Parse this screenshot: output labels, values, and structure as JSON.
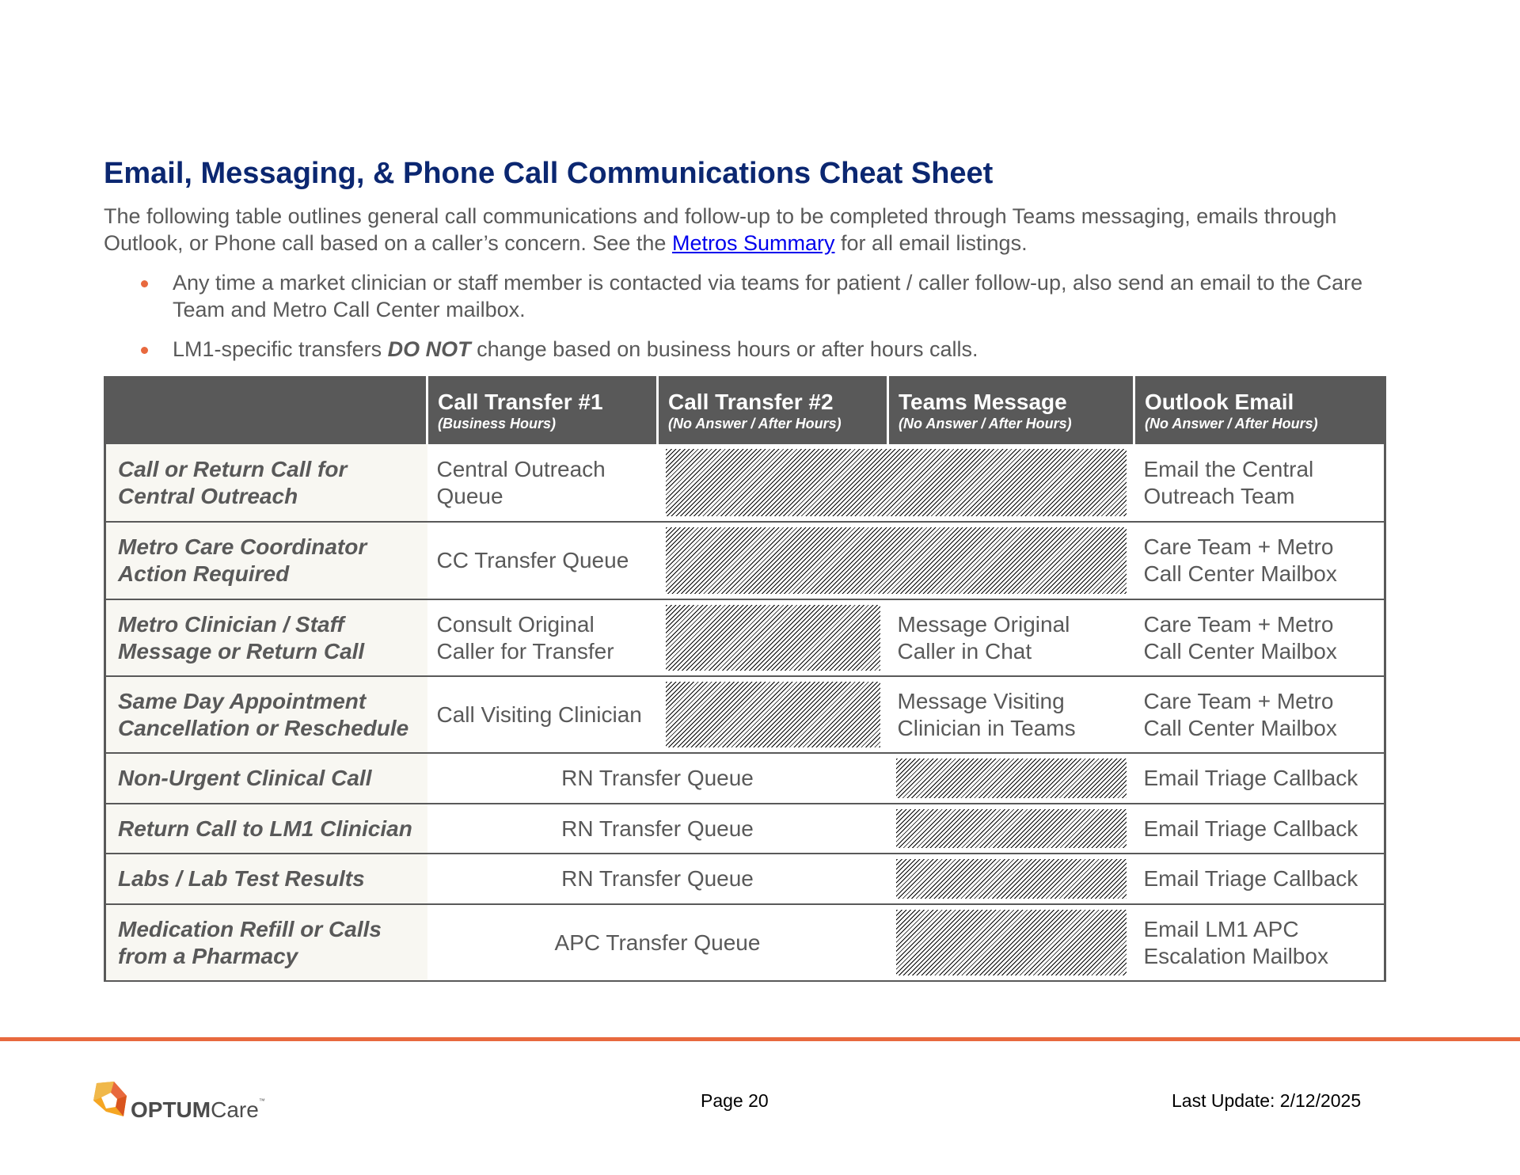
{
  "document": {
    "title": "Email, Messaging, & Phone Call Communications Cheat Sheet",
    "intro_before_link": "The following table outlines general call communications and follow-up to be completed through Teams messaging, emails through Outlook, or Phone call based on a caller’s concern. See the ",
    "intro_link": "Metros Summary",
    "intro_after_link": " for all email listings.",
    "bullets": [
      {
        "text": "Any time a market clinician or staff member is contacted via teams for patient / caller follow-up, also send an email to the Care Team and Metro Call Center mailbox."
      },
      {
        "before": "LM1-specific transfers ",
        "bold": "DO NOT",
        "after": " change based on business hours or after hours calls."
      }
    ]
  },
  "table": {
    "headers": [
      {
        "main": "",
        "sub": ""
      },
      {
        "main": "Call Transfer #1",
        "sub": "(Business Hours)"
      },
      {
        "main": "Call Transfer #2",
        "sub": "(No Answer / After Hours)"
      },
      {
        "main": "Teams Message",
        "sub": "(No Answer / After Hours)"
      },
      {
        "main": "Outlook Email",
        "sub": "(No Answer / After Hours)"
      }
    ],
    "rows": [
      {
        "label": "Call or Return Call for Central Outreach",
        "transfer1": "Central Outreach Queue",
        "outlook": "Email the Central Outreach Team"
      },
      {
        "label": "Metro Care Coordinator Action Required",
        "transfer1": "CC Transfer Queue",
        "outlook": "Care Team + Metro Call Center Mailbox"
      },
      {
        "label": "Metro Clinician / Staff Message or Return Call",
        "transfer1": "Consult Original Caller for Transfer",
        "teams": "Message Original Caller in Chat",
        "outlook": "Care Team + Metro Call Center Mailbox"
      },
      {
        "label": "Same Day Appointment Cancellation or Reschedule",
        "transfer1": "Call Visiting Clinician",
        "teams": "Message Visiting Clinician in Teams",
        "outlook": "Care Team + Metro Call Center Mailbox"
      },
      {
        "label": "Non-Urgent Clinical Call",
        "transfer": "RN Transfer Queue",
        "outlook": "Email Triage Callback"
      },
      {
        "label": "Return Call to LM1 Clinician",
        "transfer": "RN Transfer Queue",
        "outlook": "Email Triage Callback"
      },
      {
        "label": "Labs / Lab Test Results",
        "transfer": "RN Transfer Queue",
        "outlook": "Email Triage Callback"
      },
      {
        "label": "Medication Refill or Calls from a Pharmacy",
        "transfer": "APC Transfer Queue",
        "outlook": "Email LM1 APC Escalation Mailbox"
      }
    ]
  },
  "footer": {
    "logo_bold": "OPTUM",
    "logo_light": "Care",
    "logo_tm": "™",
    "page": "Page 20",
    "last_update": "Last Update: 2/12/2025"
  },
  "colors": {
    "title": "#0b2771",
    "header_bg": "#595959",
    "row_header_bg": "#f8f7f2",
    "accent_orange": "#e8693e",
    "link": "#0000ee"
  }
}
